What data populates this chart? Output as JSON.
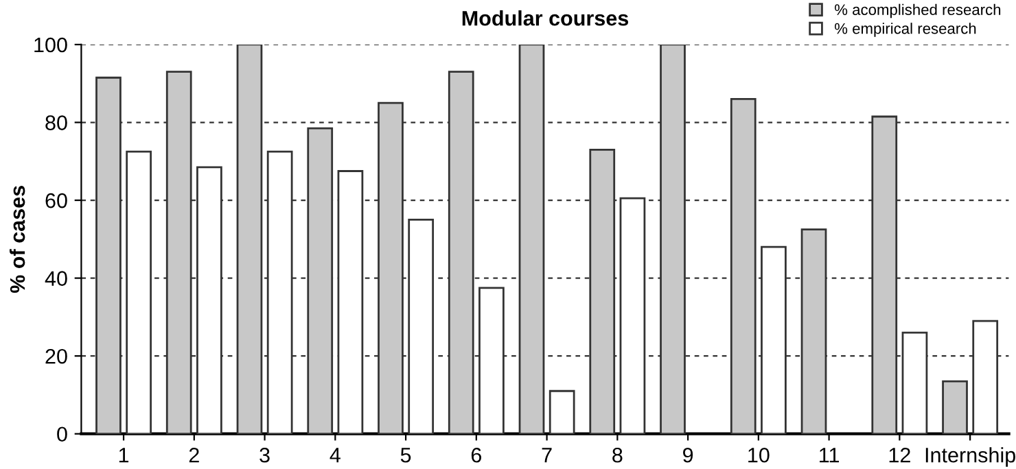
{
  "chart_data": {
    "type": "bar",
    "title": "Modular courses",
    "ylabel": "% of cases",
    "categories": [
      "1",
      "2",
      "3",
      "4",
      "5",
      "6",
      "7",
      "8",
      "9",
      "10",
      "11",
      "12",
      "Internship"
    ],
    "series": [
      {
        "name": "% acomplished research",
        "color": "#c8c8c8",
        "values": [
          91.5,
          93,
          100,
          78.5,
          85,
          93,
          100,
          73,
          100,
          86,
          52.5,
          81.5,
          13.5
        ]
      },
      {
        "name": "% empirical research",
        "color": "#ffffff",
        "values": [
          72.5,
          68.5,
          72.5,
          67.5,
          55,
          37.5,
          11,
          60.5,
          null,
          48,
          null,
          26,
          29
        ]
      }
    ],
    "ylim": [
      0,
      100
    ],
    "yticks": [
      0,
      20,
      40,
      60,
      80,
      100
    ],
    "grid": "y",
    "legend": "top right"
  }
}
